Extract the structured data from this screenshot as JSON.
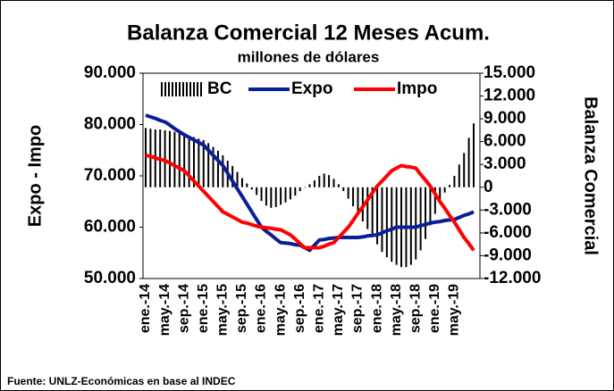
{
  "chart_data": {
    "type": "line",
    "title": "Balanza Comercial 12 Meses Acum.",
    "subtitle": "millones de dólares",
    "ylabel": "Expo - Impo",
    "y2label": "Balanza Comercial",
    "source": "Fuente: UNLZ-Económicas en base al INDEC",
    "categories": [
      "ene.-14",
      null,
      null,
      null,
      "may.-14",
      null,
      null,
      null,
      "sep.-14",
      null,
      null,
      null,
      "ene.-15",
      null,
      null,
      null,
      "may.-15",
      null,
      null,
      null,
      "sep.-15",
      null,
      null,
      null,
      "ene.-16",
      null,
      null,
      null,
      "may.-16",
      null,
      null,
      null,
      "sep.-16",
      null,
      null,
      null,
      "ene.-17",
      null,
      null,
      null,
      "may.-17",
      null,
      null,
      null,
      "sep.-17",
      null,
      null,
      null,
      "ene.-18",
      null,
      null,
      null,
      "may.-18",
      null,
      null,
      null,
      "sep.-18",
      null,
      null,
      null,
      "ene.-19",
      null,
      null,
      null,
      "may.-19",
      null,
      null,
      null,
      null
    ],
    "series": [
      {
        "name": "BC",
        "type": "bar",
        "axis": "y2",
        "color": "#000000",
        "values": [
          7800,
          7700,
          7600,
          7600,
          7500,
          7400,
          7300,
          7200,
          7000,
          6800,
          6600,
          6400,
          6200,
          5800,
          5300,
          4800,
          4200,
          3500,
          2800,
          2000,
          1200,
          500,
          -300,
          -1000,
          -1800,
          -2400,
          -2700,
          -2600,
          -2300,
          -2000,
          -1600,
          -1100,
          -500,
          0,
          400,
          900,
          1500,
          1800,
          1600,
          1100,
          400,
          -500,
          -1500,
          -2500,
          -3500,
          -4500,
          -5500,
          -6500,
          -7500,
          -8500,
          -9200,
          -9800,
          -10200,
          -10500,
          -10500,
          -10200,
          -9500,
          -8300,
          -6800,
          -5000,
          -3500,
          -2000,
          -700,
          300,
          1500,
          3000,
          4500,
          6500,
          8400
        ]
      },
      {
        "name": "Expo",
        "type": "line",
        "color": "#0a1e96",
        "values": [
          81800,
          81500,
          81200,
          80800,
          80500,
          79900,
          79200,
          78600,
          78000,
          77500,
          77000,
          76500,
          76000,
          75000,
          74000,
          73000,
          72000,
          70500,
          69000,
          67500,
          66000,
          64500,
          63000,
          61500,
          60000,
          59200,
          58500,
          57700,
          57000,
          56900,
          56800,
          56600,
          56500,
          56000,
          55500,
          56500,
          57500,
          57600,
          57800,
          57900,
          58000,
          58000,
          58000,
          58000,
          58000,
          58100,
          58300,
          58400,
          58500,
          58900,
          59300,
          59600,
          60000,
          60000,
          60000,
          60000,
          60000,
          60300,
          60500,
          60800,
          61000,
          61100,
          61300,
          61400,
          61500,
          61900,
          62300,
          62600,
          63000
        ]
      },
      {
        "name": "Impo",
        "type": "line",
        "color": "#ff0000",
        "values": [
          74000,
          73800,
          73500,
          73200,
          73000,
          72500,
          72000,
          71500,
          71000,
          70000,
          69000,
          68000,
          67000,
          66000,
          65000,
          64000,
          63000,
          62500,
          62000,
          61500,
          61000,
          60800,
          60500,
          60200,
          60000,
          59900,
          59800,
          59600,
          59500,
          59000,
          58500,
          57700,
          56800,
          56000,
          56000,
          56000,
          56000,
          56300,
          56700,
          57000,
          58000,
          59000,
          60000,
          61300,
          62700,
          64000,
          65300,
          66700,
          68000,
          69000,
          70000,
          71000,
          71500,
          72000,
          71800,
          71700,
          71500,
          70300,
          69200,
          68000,
          66500,
          65000,
          63700,
          62300,
          61000,
          59500,
          58000,
          56800,
          55500
        ]
      }
    ],
    "ylim": [
      50000,
      90000
    ],
    "yticks": [
      {
        "value": 50000,
        "label": "50.000"
      },
      {
        "value": 60000,
        "label": "60.000"
      },
      {
        "value": 70000,
        "label": "70.000"
      },
      {
        "value": 80000,
        "label": "80.000"
      },
      {
        "value": 90000,
        "label": "90.000"
      }
    ],
    "y2lim": [
      -12000,
      15000
    ],
    "y2ticks": [
      {
        "value": -12000,
        "label": "-12.000"
      },
      {
        "value": -9000,
        "label": "-9.000"
      },
      {
        "value": -6000,
        "label": "-6.000"
      },
      {
        "value": -3000,
        "label": "-3.000"
      },
      0,
      {
        "value": 3000,
        "label": "3.000"
      },
      {
        "value": 6000,
        "label": "6.000"
      },
      {
        "value": 9000,
        "label": "9.000"
      },
      {
        "value": 12000,
        "label": "12.000"
      },
      {
        "value": 15000,
        "label": "15.000"
      }
    ],
    "legend": "top"
  }
}
